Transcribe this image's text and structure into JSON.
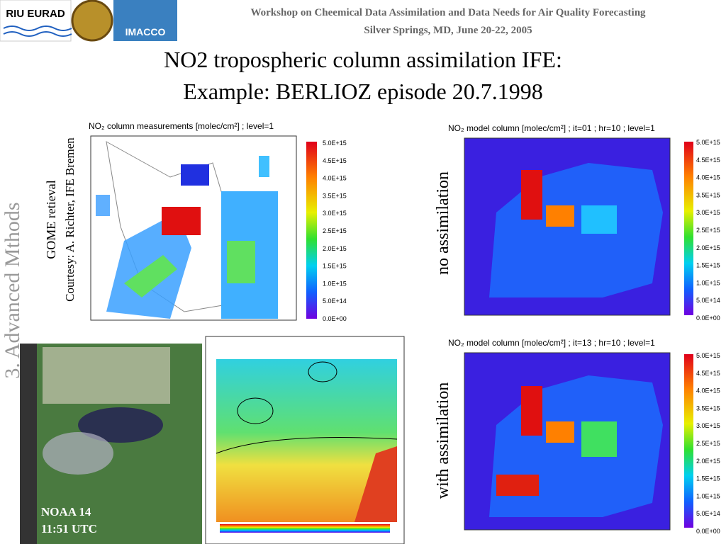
{
  "header": {
    "logo_left": "RIU EURAD",
    "logo_right": "IMACCO",
    "workshop": "Workshop on Cheemical Data Assimilation and Data Needs for Air Quality Forecasting",
    "place": "Silver Springs, MD, June 20-22, 2005"
  },
  "title": {
    "line1": "NO2 tropospheric column assimilation IFE:",
    "line2": "Example: BERLIOZ episode 20.7.1998"
  },
  "side_label": "3. Advanced Mthods",
  "gome": {
    "line1": "GOME retieval",
    "line2": "Courtesy: A. Richter, IFE Bremen"
  },
  "panels": {
    "measurements_title": "NO₂ column measurements [molec/cm²]  ; level=1",
    "no_assim_label": "no assimilation",
    "no_assim_title": "NO₂ model column [molec/cm²] ; it=01 ; hr=10  ; level=1",
    "with_assim_label": "with assimilation",
    "with_assim_title": "NO₂ model column [molec/cm²] ; it=13 ; hr=10  ; level=1",
    "colorbar_labels": [
      "5.0E+15",
      "4.5E+15",
      "4.0E+15",
      "3.5E+15",
      "3.0E+15",
      "2.5E+15",
      "2.0E+15",
      "1.5E+15",
      "1.0E+15",
      "5.0E+14",
      "0.0E+00"
    ]
  },
  "satellite": {
    "line1": "NOAA 14",
    "line2": "11:51 UTC"
  }
}
